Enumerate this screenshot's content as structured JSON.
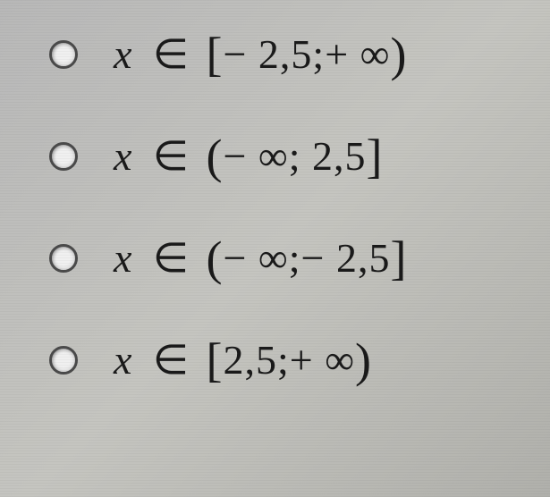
{
  "type": "multiple-choice",
  "background_color": "#b8b8b0",
  "text_color": "#1a1a1a",
  "font_family": "Times New Roman",
  "font_size": 46,
  "radio_border_color": "#4a4a4a",
  "options": [
    {
      "selected": false,
      "label_text": "x ∈ [−2,5; +∞)",
      "var": "x",
      "elem": "∈",
      "open_bracket": "[",
      "interval_left": "− 2,5;",
      "interval_right": "+ ∞",
      "close_bracket": ")"
    },
    {
      "selected": false,
      "label_text": "x ∈ (−∞; 2,5]",
      "var": "x",
      "elem": "∈",
      "open_bracket": "(",
      "interval_left": "− ∞;",
      "interval_right": " 2,5",
      "close_bracket": "]"
    },
    {
      "selected": false,
      "label_text": "x ∈ (−∞; −2,5]",
      "var": "x",
      "elem": "∈",
      "open_bracket": "(",
      "interval_left": "− ∞;",
      "interval_right": "− 2,5",
      "close_bracket": "]"
    },
    {
      "selected": false,
      "label_text": "x ∈ [2,5; +∞)",
      "var": "x",
      "elem": "∈",
      "open_bracket": "[",
      "interval_left": "2,5;",
      "interval_right": "+ ∞",
      "close_bracket": ")"
    }
  ]
}
